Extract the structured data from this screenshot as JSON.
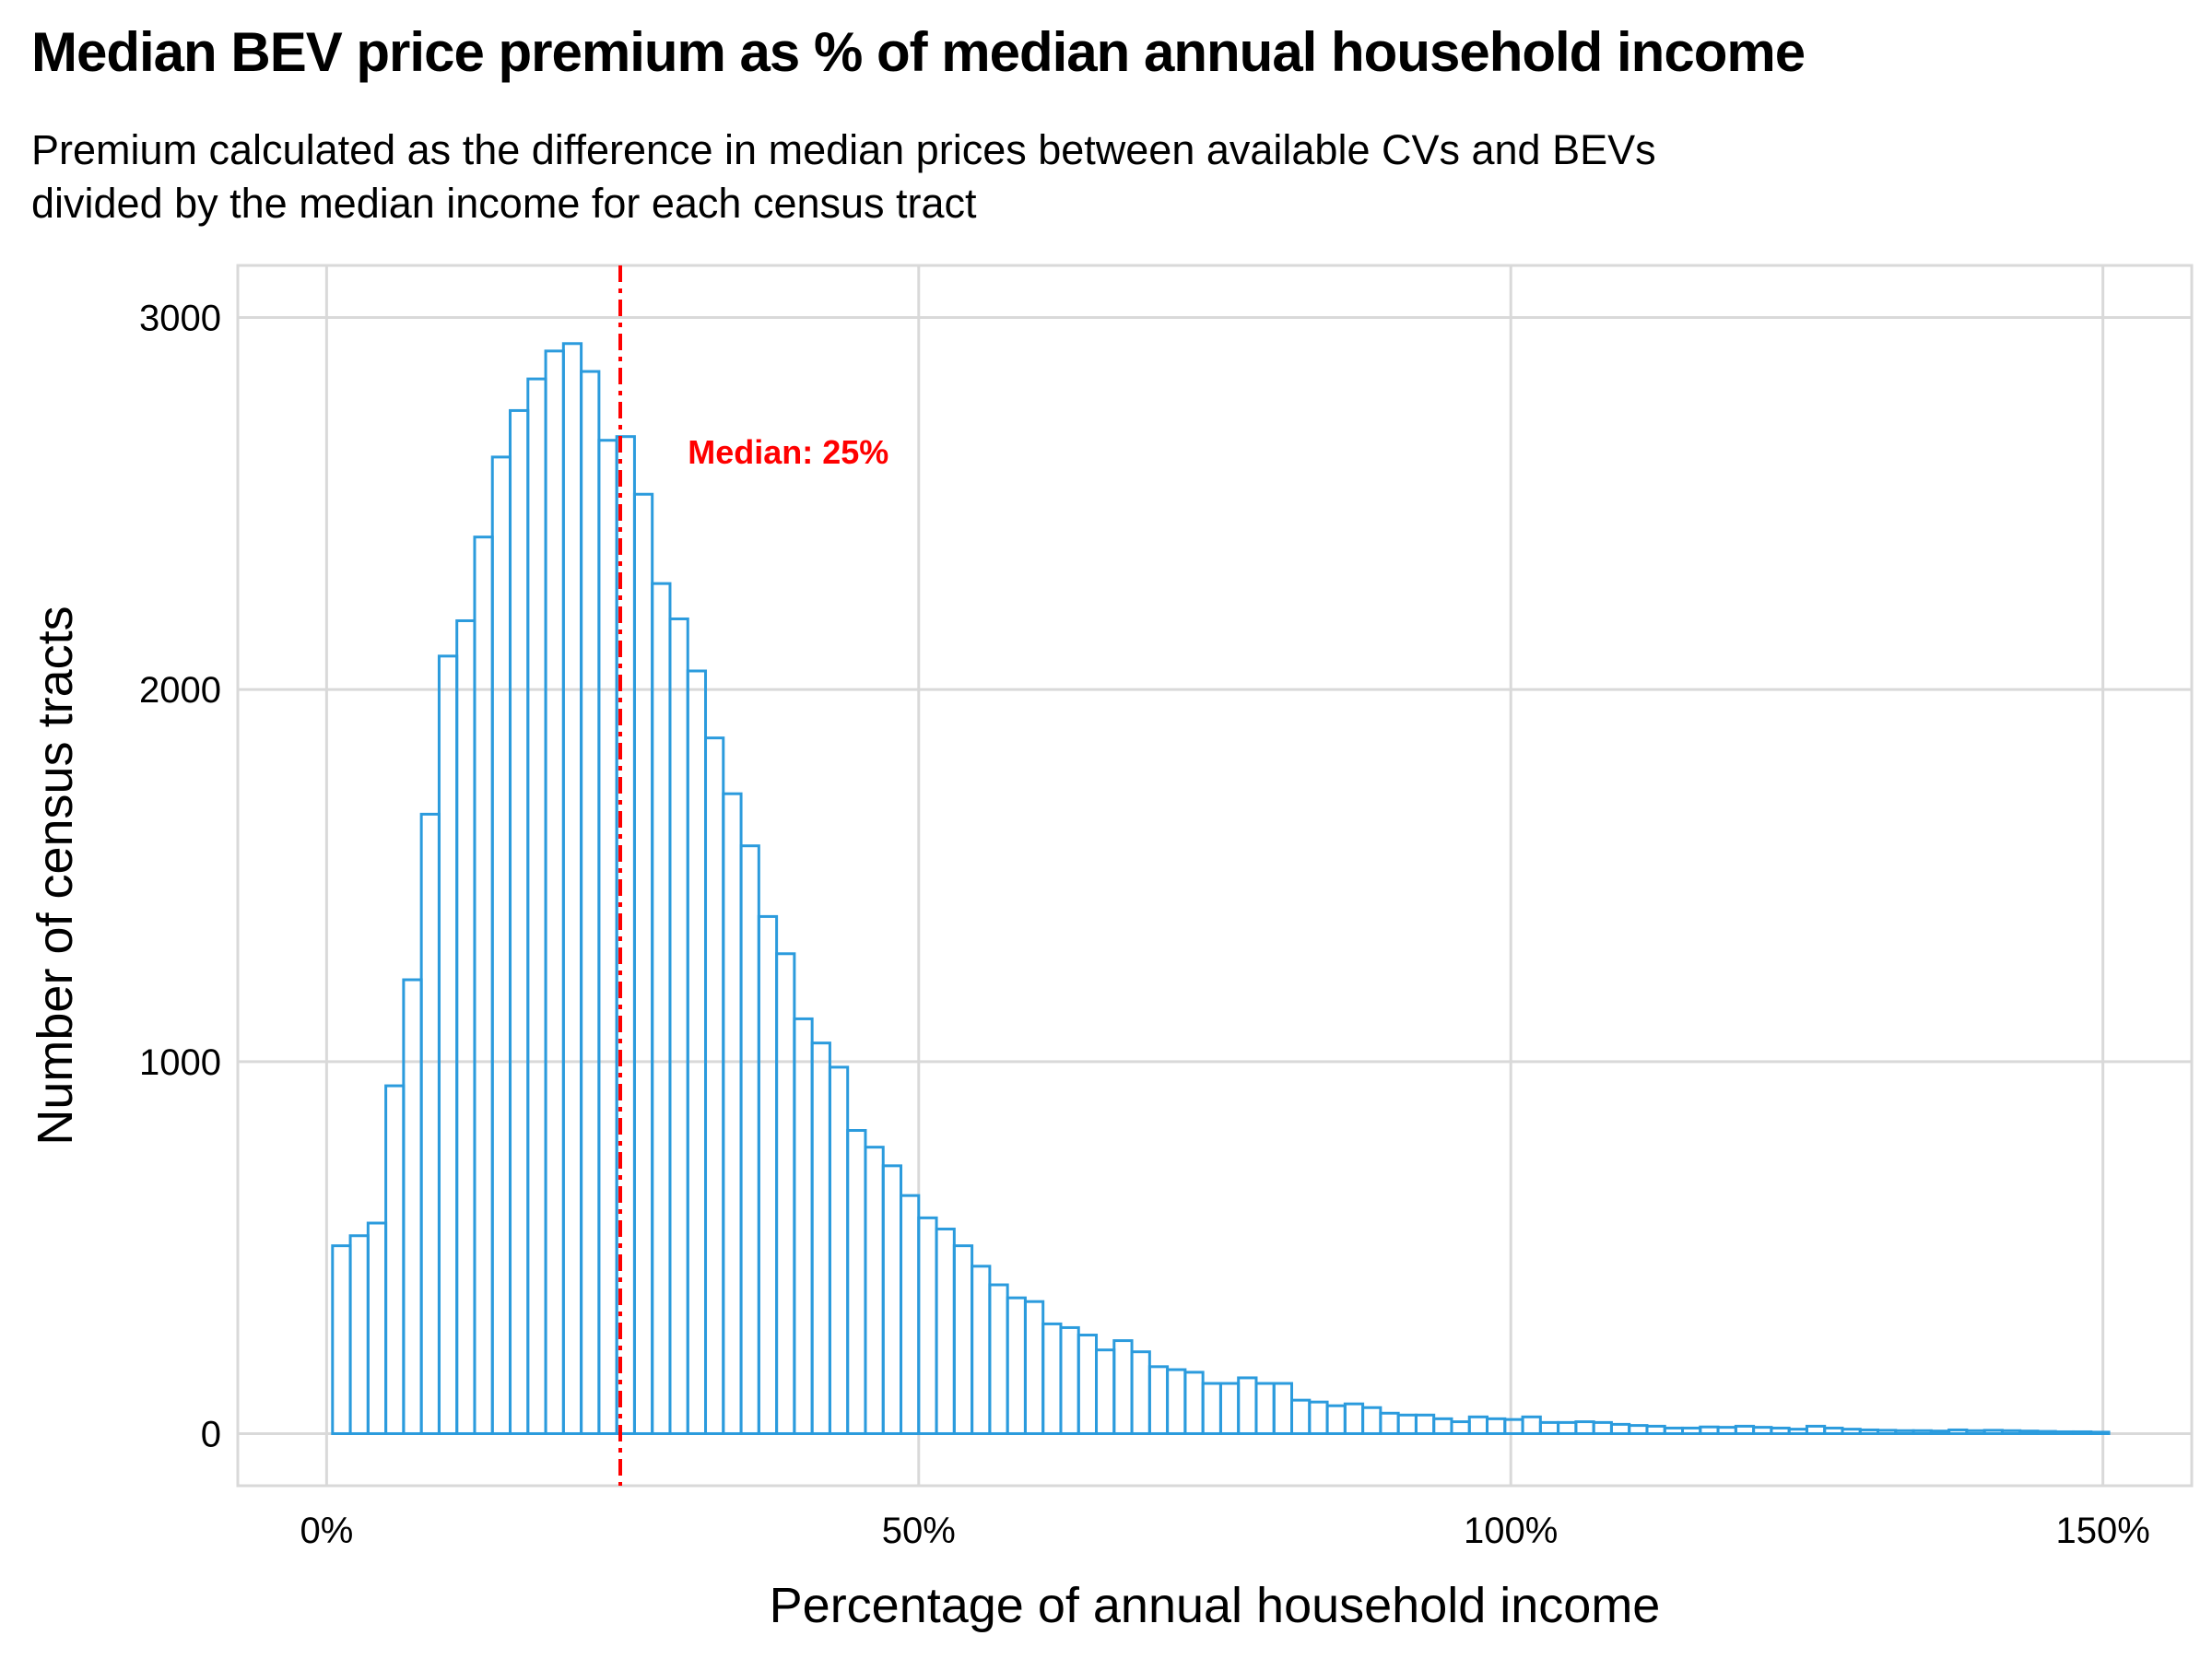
{
  "title": "Median BEV price premium as % of median annual household income",
  "subtitle_lines": [
    "Premium calculated as the difference in median prices between available CVs and BEVs",
    "divided by the median income for each census tract"
  ],
  "colors": {
    "bar_stroke": "#2B9BDD",
    "median_line": "#FF0000",
    "grid": "#D9D9D9"
  },
  "chart_data": {
    "type": "bar",
    "subtype": "histogram",
    "title": "Median BEV price premium as % of median annual household income",
    "xlabel": "Percentage of annual household income",
    "ylabel": "Number of census tracts",
    "xlim": [
      -0.075,
      1.575
    ],
    "ylim": [
      -140,
      3140
    ],
    "x_ticks": [
      0,
      0.5,
      1.0,
      1.5
    ],
    "x_tick_labels": [
      "0%",
      "50%",
      "100%",
      "150%"
    ],
    "y_ticks": [
      0,
      1000,
      2000,
      3000
    ],
    "y_tick_labels": [
      "0",
      "1000",
      "2000",
      "3000"
    ],
    "grid": true,
    "bin_start": 0.005,
    "bin_width": 0.015,
    "counts": [
      505,
      532,
      566,
      935,
      1220,
      1665,
      2090,
      2185,
      2410,
      2625,
      2750,
      2835,
      2910,
      2930,
      2855,
      2670,
      2680,
      2525,
      2285,
      2190,
      2050,
      1870,
      1720,
      1580,
      1390,
      1290,
      1115,
      1050,
      985,
      815,
      770,
      720,
      640,
      580,
      550,
      505,
      450,
      400,
      365,
      355,
      295,
      285,
      265,
      225,
      250,
      220,
      180,
      172,
      165,
      135,
      135,
      150,
      135,
      135,
      90,
      85,
      75,
      80,
      70,
      55,
      50,
      50,
      40,
      32,
      45,
      40,
      38,
      45,
      30,
      30,
      32,
      30,
      25,
      22,
      20,
      15,
      15,
      18,
      17,
      20,
      17,
      15,
      12,
      20,
      15,
      12,
      10,
      9,
      8,
      8,
      7,
      10,
      8,
      9,
      8,
      7,
      6,
      5,
      5,
      4
    ],
    "median": {
      "value": 0.248,
      "label": "Median: 25%"
    }
  }
}
